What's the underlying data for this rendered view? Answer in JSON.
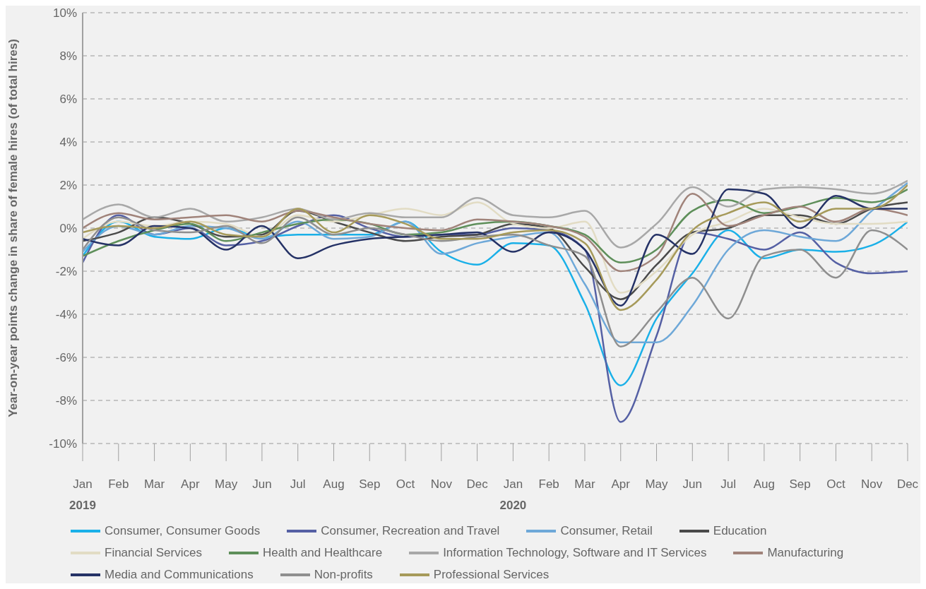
{
  "chart_data": {
    "type": "line",
    "ylabel": "Year-on-year points change in share of female hires (of total hires)",
    "categories": [
      "Jan",
      "Feb",
      "Mar",
      "Apr",
      "May",
      "Jun",
      "Jul",
      "Aug",
      "Sep",
      "Oct",
      "Nov",
      "Dec",
      "Jan",
      "Feb",
      "Mar",
      "Apr",
      "May",
      "Jun",
      "Jul",
      "Aug",
      "Sep",
      "Oct",
      "Nov",
      "Dec"
    ],
    "annotations": [
      "2019",
      "2020"
    ],
    "ylim": [
      -10,
      10
    ],
    "yticks": [
      {
        "value": -10,
        "label": "-10%"
      },
      {
        "value": -8,
        "label": "-8%"
      },
      {
        "value": -6,
        "label": "-6%"
      },
      {
        "value": -4,
        "label": "-4%"
      },
      {
        "value": -2,
        "label": "-2%"
      },
      {
        "value": 0,
        "label": "0%"
      },
      {
        "value": 2,
        "label": "2%"
      },
      {
        "value": 4,
        "label": "4%"
      },
      {
        "value": 6,
        "label": "6%"
      },
      {
        "value": 8,
        "label": "8%"
      },
      {
        "value": 10,
        "label": "10%"
      }
    ],
    "grid": "y",
    "legend": "bottom",
    "marker": "none",
    "line_style": "solid",
    "series": [
      {
        "name": "Consumer, Consumer Goods",
        "color": "#1ab0e8",
        "values": [
          -1.3,
          0.3,
          -0.4,
          -0.5,
          0.0,
          -0.4,
          -0.3,
          -0.3,
          -0.3,
          0.3,
          -1.1,
          -1.7,
          -0.7,
          -0.8,
          -3.5,
          -7.3,
          -4.2,
          -2.1,
          -0.1,
          -1.4,
          -1.0,
          -1.1,
          -0.8,
          0.3
        ]
      },
      {
        "name": "Consumer, Recreation and Travel",
        "color": "#5560a4",
        "values": [
          -1.6,
          0.6,
          -0.3,
          0.0,
          -0.8,
          -0.6,
          0.1,
          0.6,
          0.0,
          -0.4,
          -0.3,
          -0.3,
          0.0,
          -0.1,
          -1.0,
          -9.0,
          -5.0,
          -0.2,
          -0.5,
          -1.0,
          -0.2,
          -1.6,
          -2.1,
          -2.0
        ]
      },
      {
        "name": "Consumer, Retail",
        "color": "#6ea8d8",
        "values": [
          -1.1,
          0.1,
          -0.3,
          0.1,
          0.0,
          -0.5,
          0.3,
          -0.5,
          -0.4,
          0.3,
          -1.2,
          -0.7,
          -0.4,
          -0.2,
          -2.6,
          -5.3,
          -5.3,
          -3.6,
          -1.0,
          -0.1,
          -0.4,
          -0.6,
          0.8,
          2.1
        ]
      },
      {
        "name": "Education",
        "color": "#4a4a4a",
        "values": [
          -0.6,
          -0.2,
          0.5,
          0.2,
          -0.4,
          -0.3,
          0.8,
          0.3,
          -0.2,
          -0.6,
          -0.4,
          -0.3,
          0.2,
          0.0,
          -1.8,
          -3.3,
          -1.7,
          -0.2,
          0.0,
          0.6,
          0.6,
          0.2,
          0.9,
          1.2
        ]
      },
      {
        "name": "Financial Services",
        "color": "#e2dcc4",
        "values": [
          -0.5,
          0.3,
          0.1,
          0.3,
          0.2,
          -0.4,
          0.6,
          0.3,
          0.6,
          0.9,
          0.6,
          1.2,
          0.2,
          0.0,
          0.3,
          -3.0,
          -2.0,
          -0.3,
          0.3,
          0.9,
          0.5,
          0.2,
          0.2,
          0.3
        ]
      },
      {
        "name": "Health and Healthcare",
        "color": "#5e8f5a",
        "values": [
          -1.3,
          -0.6,
          -0.1,
          0.2,
          -0.6,
          -0.2,
          0.2,
          0.4,
          0.2,
          -0.3,
          -0.2,
          0.2,
          0.3,
          0.1,
          -0.3,
          -1.6,
          -1.0,
          0.8,
          1.3,
          0.7,
          1.0,
          1.4,
          1.2,
          1.8
        ]
      },
      {
        "name": "Information Technology, Software and IT Services",
        "color": "#a8a8a8",
        "values": [
          0.4,
          1.1,
          0.5,
          0.9,
          0.3,
          0.5,
          0.9,
          0.4,
          0.7,
          0.5,
          0.5,
          1.4,
          0.6,
          0.5,
          0.8,
          -0.9,
          0.2,
          1.9,
          1.0,
          1.8,
          1.9,
          1.8,
          1.6,
          2.2
        ]
      },
      {
        "name": "Manufacturing",
        "color": "#a0837a",
        "values": [
          0.0,
          0.7,
          0.4,
          0.5,
          0.6,
          0.3,
          0.8,
          0.5,
          0.2,
          0.0,
          -0.1,
          0.4,
          0.3,
          0.1,
          -0.4,
          -2.0,
          -1.3,
          1.6,
          0.1,
          0.6,
          1.0,
          0.3,
          0.9,
          0.6
        ]
      },
      {
        "name": "Media and Communications",
        "color": "#253266",
        "values": [
          -0.5,
          -0.8,
          0.1,
          0.0,
          -1.0,
          0.1,
          -1.4,
          -0.8,
          -0.5,
          -0.4,
          -0.3,
          -0.2,
          -1.1,
          -0.2,
          -1.0,
          -3.6,
          -0.3,
          -1.2,
          1.8,
          1.6,
          0.0,
          1.5,
          0.9,
          0.9
        ]
      },
      {
        "name": "Non-profits",
        "color": "#8f8f8f",
        "values": [
          -1.0,
          0.5,
          -0.1,
          -0.2,
          0.1,
          -0.7,
          0.5,
          -0.3,
          0.0,
          -0.3,
          -0.6,
          -0.4,
          -0.3,
          -0.8,
          -1.3,
          -5.5,
          -3.9,
          -2.3,
          -4.2,
          -1.3,
          -1.0,
          -2.3,
          -0.1,
          -1.0
        ]
      },
      {
        "name": "Professional Services",
        "color": "#a69a5a",
        "values": [
          -0.2,
          0.1,
          0.0,
          0.3,
          -0.3,
          -0.4,
          0.9,
          -0.2,
          0.6,
          0.2,
          -0.5,
          -0.5,
          -0.2,
          -0.1,
          -0.7,
          -3.8,
          -2.4,
          -0.1,
          0.7,
          1.2,
          0.3,
          0.9,
          0.9,
          2.0
        ]
      }
    ]
  }
}
